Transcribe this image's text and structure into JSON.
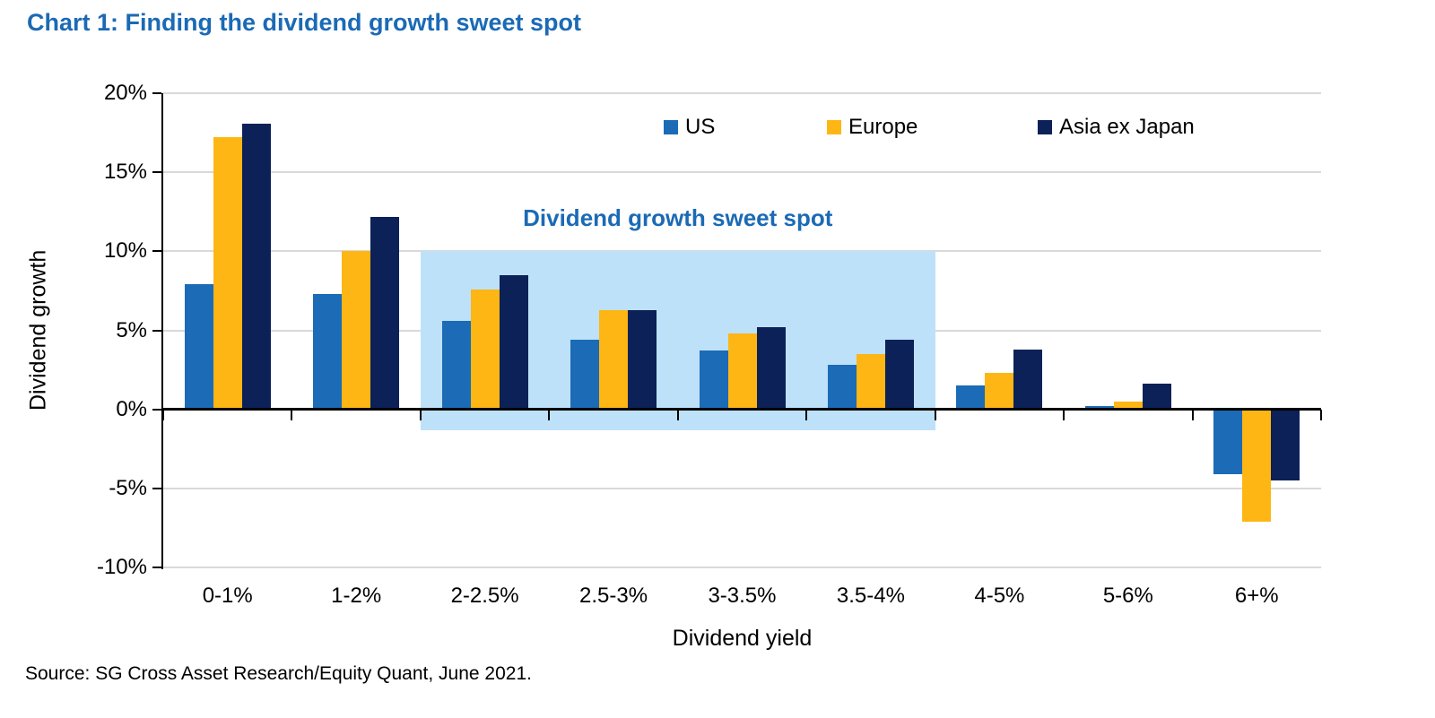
{
  "title": "Chart 1: Finding the dividend growth sweet spot",
  "source": "Source: SG Cross Asset Research/Equity Quant, June 2021.",
  "colors": {
    "title_blue": "#1B6AB5",
    "axis_black": "#000000",
    "gridline_gray": "#D9D9D9",
    "sweet_spot_fill": "#BEE1FA"
  },
  "chart_data": {
    "type": "bar",
    "title": "Chart 1: Finding the dividend growth sweet spot",
    "xlabel": "Dividend yield",
    "ylabel": "Dividend growth",
    "ylim": [
      -10,
      20
    ],
    "ytick_step": 5,
    "ytick_labels": [
      "20%",
      "15%",
      "10%",
      "5%",
      "0%",
      "-5%",
      "-10%"
    ],
    "grid": "horizontal",
    "legend_position": "top-inside",
    "categories": [
      "0-1%",
      "1-2%",
      "2-2.5%",
      "2.5-3%",
      "3-3.5%",
      "3.5-4%",
      "4-5%",
      "5-6%",
      "6+%"
    ],
    "series": [
      {
        "name": "US",
        "color": "#1B6BB6",
        "values": [
          7.9,
          7.3,
          5.6,
          4.4,
          3.7,
          2.8,
          1.5,
          0.2,
          -4.1
        ]
      },
      {
        "name": "Europe",
        "color": "#FDB614",
        "values": [
          17.2,
          10.0,
          7.6,
          6.3,
          4.8,
          3.5,
          2.3,
          0.5,
          -7.1
        ]
      },
      {
        "name": "Asia ex Japan",
        "color": "#0B2158",
        "values": [
          18.1,
          12.2,
          8.5,
          6.3,
          5.2,
          4.4,
          3.8,
          1.6,
          -4.5
        ]
      }
    ],
    "annotation": {
      "label": "Dividend growth sweet spot",
      "color": "#1B6AB5",
      "region": {
        "from_category": "2-2.5%",
        "to_category": "3.5-4%",
        "y_top": 10,
        "y_bottom": -1.35,
        "fill": "#BEE1FA"
      }
    }
  }
}
